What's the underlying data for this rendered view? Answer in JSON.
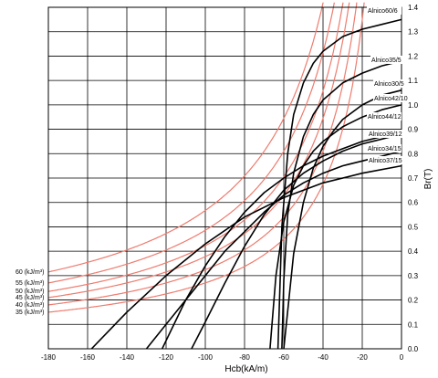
{
  "chart_data": {
    "type": "line",
    "title": "",
    "xlabel": "Hcb(kA/m)",
    "ylabel": "Br(T)",
    "xlim": [
      -180,
      0
    ],
    "ylim": [
      0,
      1.4
    ],
    "x_ticks": [
      "-180",
      "-160",
      "-140",
      "-120",
      "-100",
      "-80",
      "-60",
      "-40",
      "-20",
      "0"
    ],
    "y_ticks": [
      "0.0",
      "0.1",
      "0.2",
      "0.3",
      "0.4",
      "0.5",
      "0.6",
      "0.7",
      "0.8",
      "0.9",
      "1.0",
      "1.1",
      "1.2",
      "1.3",
      "1.4"
    ],
    "grid": true,
    "energy_product_curves": {
      "color": "#ee7b6e",
      "series": [
        {
          "name": "60 (kJ/m³)",
          "bh": 60
        },
        {
          "name": "55 (kJ/m³)",
          "bh": 55
        },
        {
          "name": "50 (kJ/m³)",
          "bh": 50
        },
        {
          "name": "45 (kJ/m³)",
          "bh": 45
        },
        {
          "name": "40 (kJ/m³)",
          "bh": 40
        },
        {
          "name": "35 (kJ/m³)",
          "bh": 35
        }
      ]
    },
    "demagnetization_curves": {
      "color": "#000000",
      "series": [
        {
          "name": "Alnico60/6",
          "x": [
            -63,
            -61,
            -58,
            -55,
            -50,
            -45,
            -40,
            -30,
            -20,
            -10,
            0
          ],
          "y": [
            0,
            0.5,
            0.8,
            0.96,
            1.09,
            1.17,
            1.22,
            1.28,
            1.31,
            1.33,
            1.35
          ]
        },
        {
          "name": "Alnico35/5",
          "x": [
            -61,
            -60,
            -58,
            -55,
            -50,
            -45,
            -40,
            -30,
            -20,
            -10,
            0
          ],
          "y": [
            0,
            0.28,
            0.55,
            0.72,
            0.87,
            0.96,
            1.02,
            1.09,
            1.13,
            1.16,
            1.18
          ]
        },
        {
          "name": "Alnico30/5",
          "x": [
            -60,
            -55,
            -50,
            -45,
            -40,
            -35,
            -30,
            -20,
            -10,
            0
          ],
          "y": [
            0,
            0.39,
            0.6,
            0.74,
            0.83,
            0.89,
            0.94,
            1.0,
            1.04,
            1.06
          ]
        },
        {
          "name": "Alnico42/10",
          "x": [
            -67,
            -64,
            -60,
            -55,
            -50,
            -45,
            -40,
            -30,
            -20,
            -10,
            0
          ],
          "y": [
            0,
            0.3,
            0.52,
            0.67,
            0.75,
            0.81,
            0.85,
            0.91,
            0.95,
            0.98,
            1.0
          ]
        },
        {
          "name": "Alnico44/12",
          "x": [
            -107,
            -100,
            -90,
            -80,
            -70,
            -60,
            -50,
            -40,
            -30,
            -20,
            -10,
            0
          ],
          "y": [
            0,
            0.11,
            0.27,
            0.42,
            0.55,
            0.65,
            0.72,
            0.77,
            0.81,
            0.84,
            0.86,
            0.88
          ]
        },
        {
          "name": "Alnico39/12",
          "x": [
            -130,
            -120,
            -110,
            -100,
            -90,
            -80,
            -70,
            -60,
            -50,
            -40,
            -30,
            -20,
            -10,
            0
          ],
          "y": [
            0,
            0.1,
            0.2,
            0.3,
            0.4,
            0.48,
            0.56,
            0.63,
            0.68,
            0.72,
            0.75,
            0.77,
            0.79,
            0.81
          ]
        },
        {
          "name": "Alnico34/15",
          "x": [
            -122,
            -110,
            -100,
            -90,
            -80,
            -70,
            -60,
            -50,
            -40,
            -30,
            -20,
            -10,
            0
          ],
          "y": [
            0,
            0.2,
            0.34,
            0.46,
            0.56,
            0.64,
            0.7,
            0.75,
            0.79,
            0.82,
            0.85,
            0.87,
            0.89
          ]
        },
        {
          "name": "Alnico37/15",
          "x": [
            -158,
            -140,
            -120,
            -100,
            -80,
            -60,
            -40,
            -20,
            0
          ],
          "y": [
            0,
            0.15,
            0.3,
            0.43,
            0.54,
            0.62,
            0.68,
            0.72,
            0.75
          ]
        }
      ]
    }
  }
}
